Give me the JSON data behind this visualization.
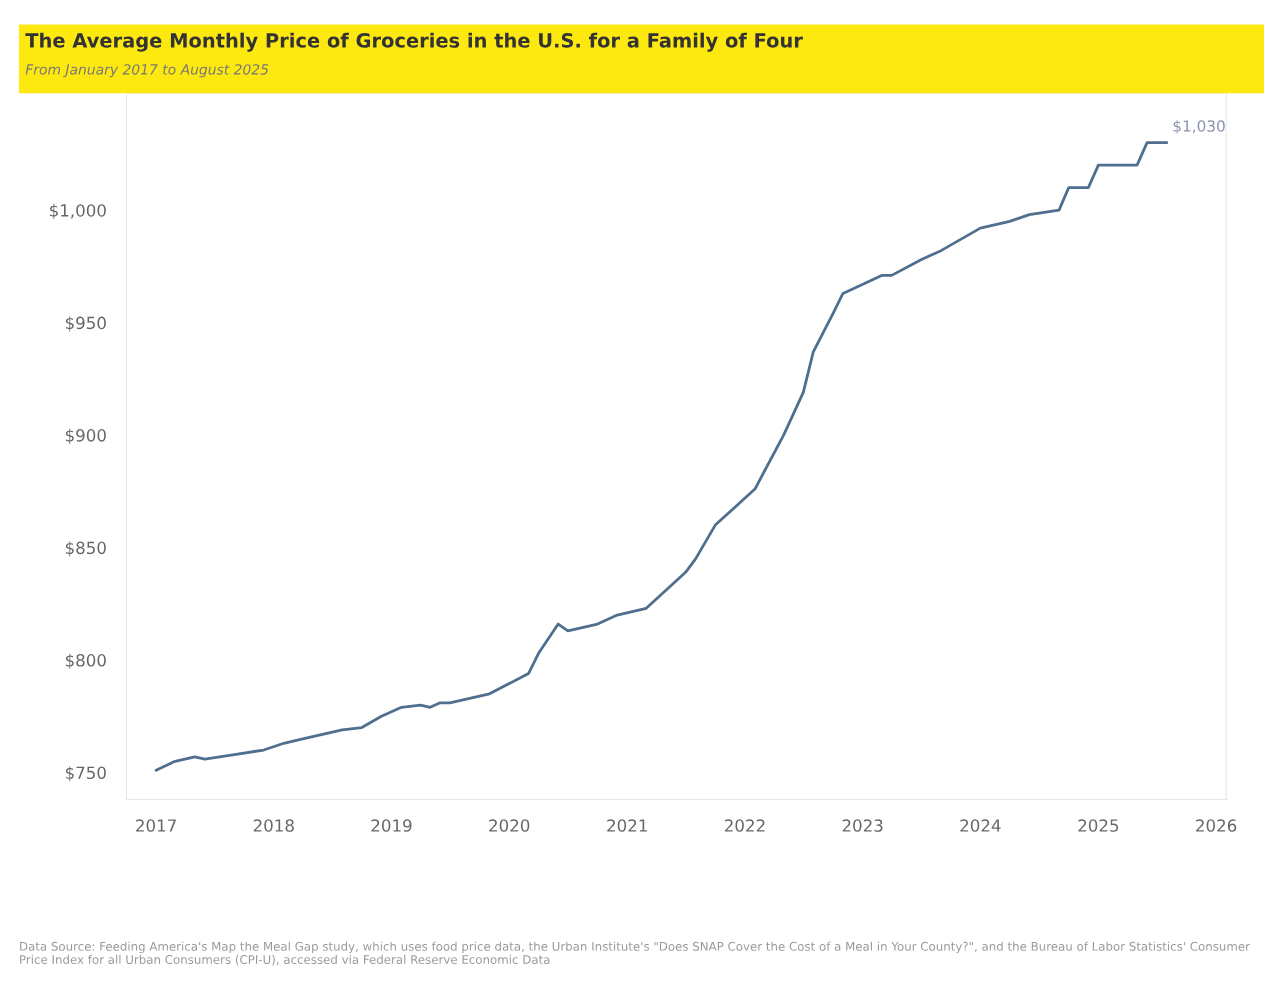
{
  "chart_data": {
    "type": "line",
    "title": "The Average Monthly Price of Groceries in the U.S. for a Family of Four",
    "subtitle": "From January 2017 to August 2025",
    "x": [
      "2017-01",
      "2017-03",
      "2017-05",
      "2017-06",
      "2017-09",
      "2017-12",
      "2018-02",
      "2018-04",
      "2018-08",
      "2018-10",
      "2018-12",
      "2019-02",
      "2019-04",
      "2019-05",
      "2019-06",
      "2019-07",
      "2019-11",
      "2020-03",
      "2020-04",
      "2020-06",
      "2020-07",
      "2020-10",
      "2020-12",
      "2021-03",
      "2021-05",
      "2021-07",
      "2021-08",
      "2021-10",
      "2022-02",
      "2022-05",
      "2022-07",
      "2022-08",
      "2022-10",
      "2022-11",
      "2023-03",
      "2023-04",
      "2023-07",
      "2023-09",
      "2023-11",
      "2024-01",
      "2024-04",
      "2024-06",
      "2024-09",
      "2024-10",
      "2024-12",
      "2025-01",
      "2025-05",
      "2025-06",
      "2025-08"
    ],
    "series": [
      {
        "color": "#4f6f8f",
        "values": [
          751,
          755,
          757,
          756,
          758,
          760,
          763,
          765,
          769,
          770,
          775,
          779,
          780,
          779,
          781,
          781,
          785,
          794,
          803,
          816,
          813,
          816,
          820,
          823,
          831,
          839,
          845,
          860,
          876,
          900,
          919,
          937,
          954,
          963,
          971,
          971,
          978,
          982,
          987,
          992,
          995,
          998,
          1000,
          1010,
          1010,
          1020,
          1020,
          1030,
          1030
        ]
      }
    ],
    "xlim": [
      "2016-10",
      "2026-02"
    ],
    "xticks": [
      {
        "value": "2017",
        "label": "2017"
      },
      {
        "value": "2018",
        "label": "2018"
      },
      {
        "value": "2019",
        "label": "2019"
      },
      {
        "value": "2020",
        "label": "2020"
      },
      {
        "value": "2021",
        "label": "2021"
      },
      {
        "value": "2022",
        "label": "2022"
      },
      {
        "value": "2023",
        "label": "2023"
      },
      {
        "value": "2024",
        "label": "2024"
      },
      {
        "value": "2025",
        "label": "2025"
      },
      {
        "value": "2026",
        "label": "2026"
      }
    ],
    "ylim": [
      738,
      1052
    ],
    "yticks": [
      {
        "value": 750,
        "label": "$750"
      },
      {
        "value": 800,
        "label": "$800"
      },
      {
        "value": 850,
        "label": "$850"
      },
      {
        "value": 900,
        "label": "$900"
      },
      {
        "value": 950,
        "label": "$950"
      },
      {
        "value": 1000,
        "label": "$1,000"
      }
    ],
    "grid": false,
    "annotations": [
      {
        "text": "$1,030",
        "x": "2025-08",
        "y": 1030
      },
      "Data Source: Feeding America's Map the Meal Gap study, which uses food price data, the Urban Institute's \"Does SNAP Cover the Cost of a Meal in Your County?\", and the Bureau of Labor Statistics' Consumer Price Index for all Urban Consumers (CPI-U), accessed via Federal Reserve Economic Data"
    ]
  }
}
